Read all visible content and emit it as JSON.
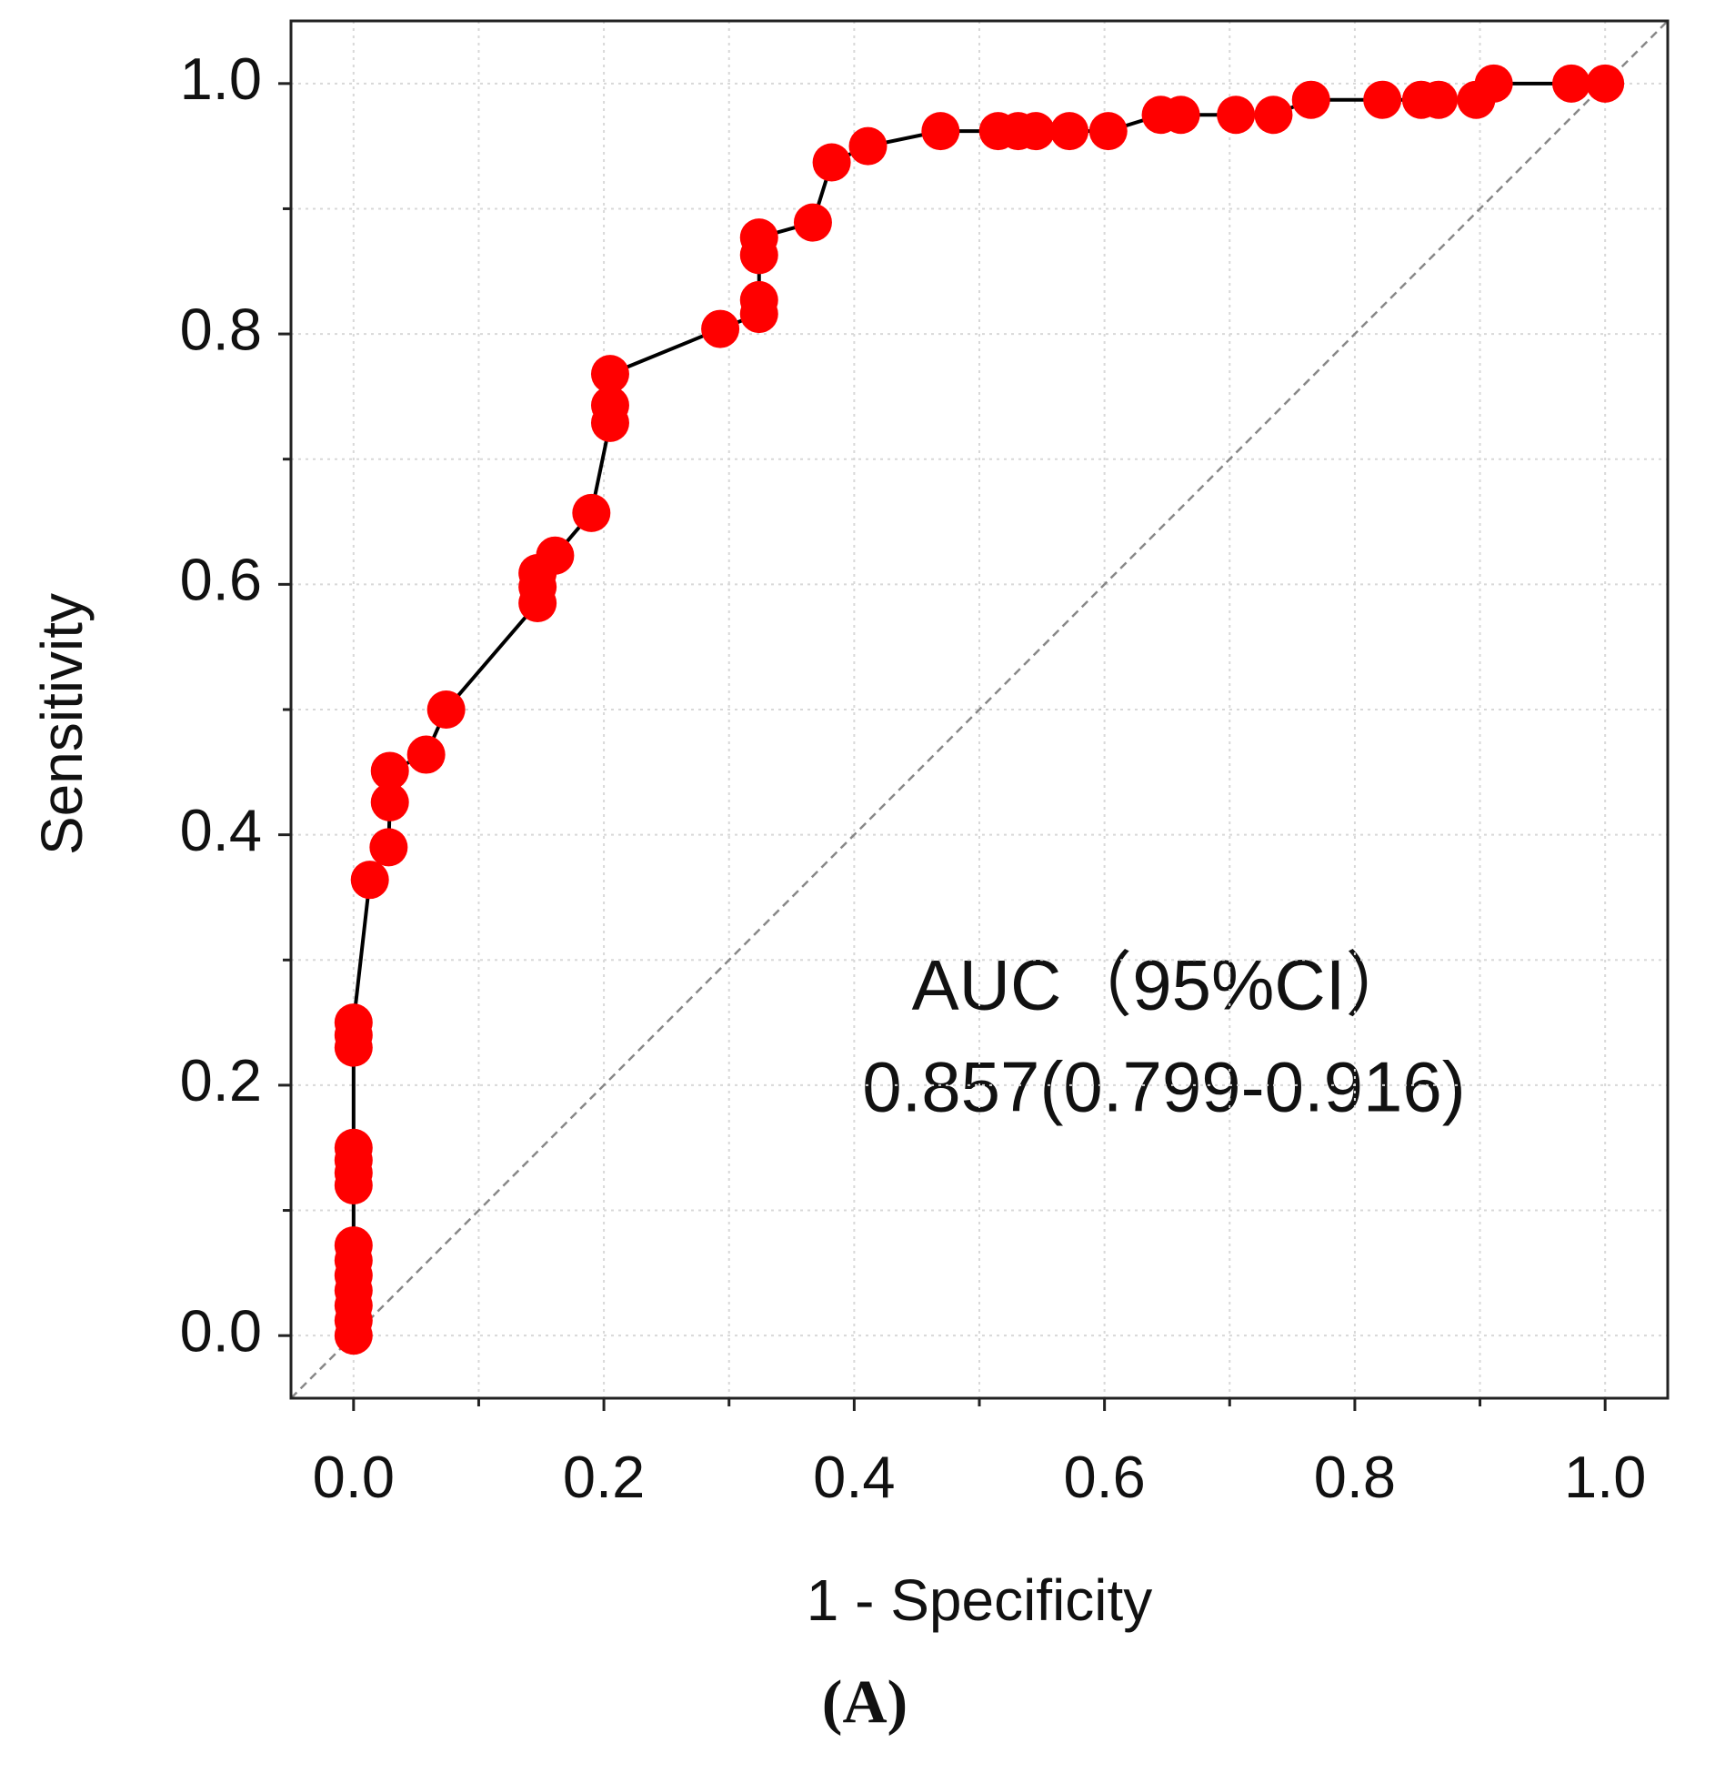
{
  "chart_data": {
    "type": "line",
    "xlabel": "1 - Specificity",
    "ylabel": "Sensitivity",
    "annotations": [
      "AUC（95%CI）",
      "0.857(0.799-0.916)"
    ],
    "caption": "(A)",
    "x": [
      0,
      0,
      0,
      0,
      0,
      0,
      0,
      0,
      0,
      0,
      0,
      0,
      0,
      0,
      0.013,
      0.028,
      0.029,
      0.029,
      0.058,
      0.074,
      0.147,
      0.147,
      0.147,
      0.161,
      0.19,
      0.205,
      0.205,
      0.205,
      0.293,
      0.324,
      0.324,
      0.324,
      0.324,
      0.367,
      0.382,
      0.411,
      0.469,
      0.515,
      0.531,
      0.545,
      0.572,
      0.603,
      0.645,
      0.661,
      0.705,
      0.735,
      0.765,
      0.822,
      0.853,
      0.867,
      0.897,
      0.911,
      0.973,
      1
    ],
    "values": [
      0,
      0.012,
      0.024,
      0.036,
      0.048,
      0.06,
      0.072,
      0.12,
      0.13,
      0.14,
      0.15,
      0.23,
      0.24,
      0.25,
      0.364,
      0.39,
      0.426,
      0.451,
      0.464,
      0.5,
      0.585,
      0.598,
      0.609,
      0.623,
      0.657,
      0.729,
      0.743,
      0.768,
      0.804,
      0.816,
      0.827,
      0.863,
      0.877,
      0.889,
      0.937,
      0.95,
      0.962,
      0.962,
      0.962,
      0.962,
      0.962,
      0.962,
      0.975,
      0.975,
      0.975,
      0.975,
      0.987,
      0.987,
      0.987,
      0.987,
      0.987,
      1,
      1,
      1
    ],
    "color": "#ff0000",
    "line_color": "#000000",
    "xlim": [
      -0.05,
      1.05
    ],
    "ylim": [
      -0.05,
      1.05
    ],
    "xticks": [
      {
        "value": 0,
        "label": "0.0"
      },
      0.2,
      0.4,
      0.6,
      0.8,
      {
        "value": 1,
        "label": "1.0"
      }
    ],
    "yticks": [
      {
        "value": 0,
        "label": "0.0"
      },
      0.2,
      0.4,
      0.6,
      0.8,
      {
        "value": 1,
        "label": "1.0"
      }
    ],
    "minor_ticks": [
      0.1,
      0.3,
      0.5,
      0.7,
      0.9
    ],
    "grid": true,
    "reference_line": true
  }
}
